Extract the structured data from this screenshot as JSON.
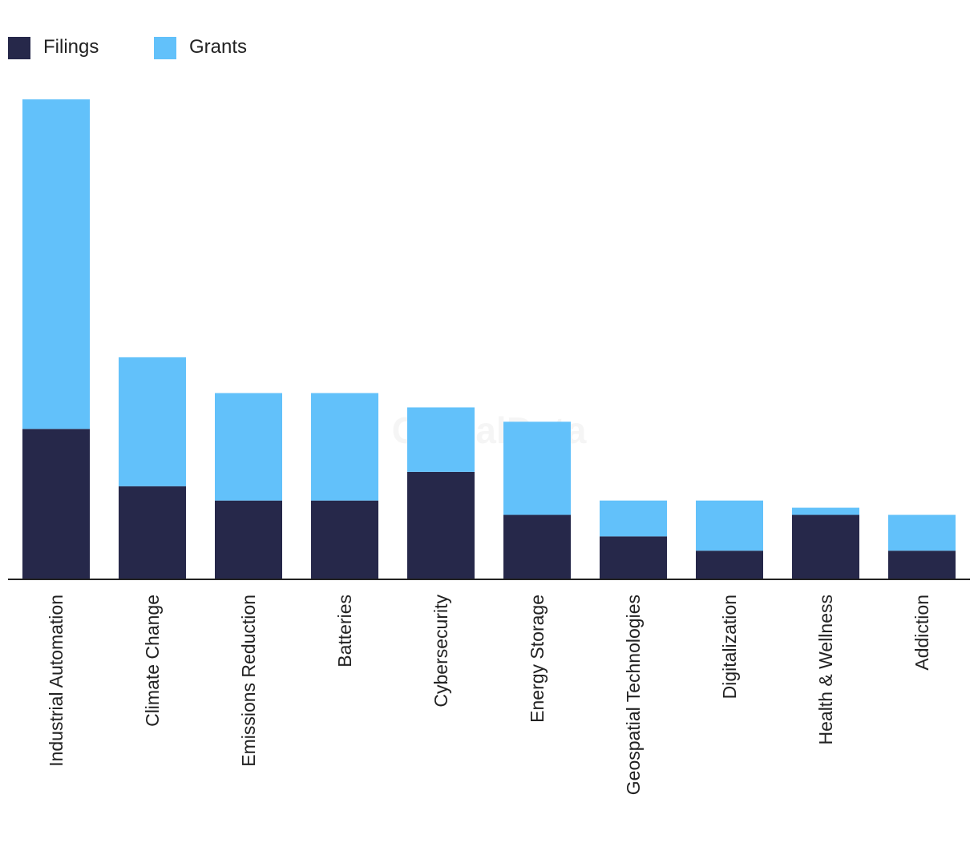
{
  "watermark": "GlobalData",
  "chart_data": {
    "type": "bar",
    "stacked": true,
    "categories": [
      "Industrial Automation",
      "Climate Change",
      "Emissions Reduction",
      "Batteries",
      "Cybersecurity",
      "Energy Storage",
      "Geospatial Technologies",
      "Digitalization",
      "Health & Wellness",
      "Addiction"
    ],
    "series": [
      {
        "name": "Filings",
        "color": "#26284a",
        "values": [
          21,
          13,
          11,
          11,
          15,
          9,
          6,
          4,
          9,
          4
        ]
      },
      {
        "name": "Grants",
        "color": "#62c1fa",
        "values": [
          46,
          18,
          15,
          15,
          9,
          13,
          5,
          7,
          1,
          5
        ]
      }
    ],
    "ylim": [
      0,
      67
    ],
    "grid": false,
    "legend_position": "top-left",
    "title": "",
    "xlabel": "",
    "ylabel": ""
  }
}
